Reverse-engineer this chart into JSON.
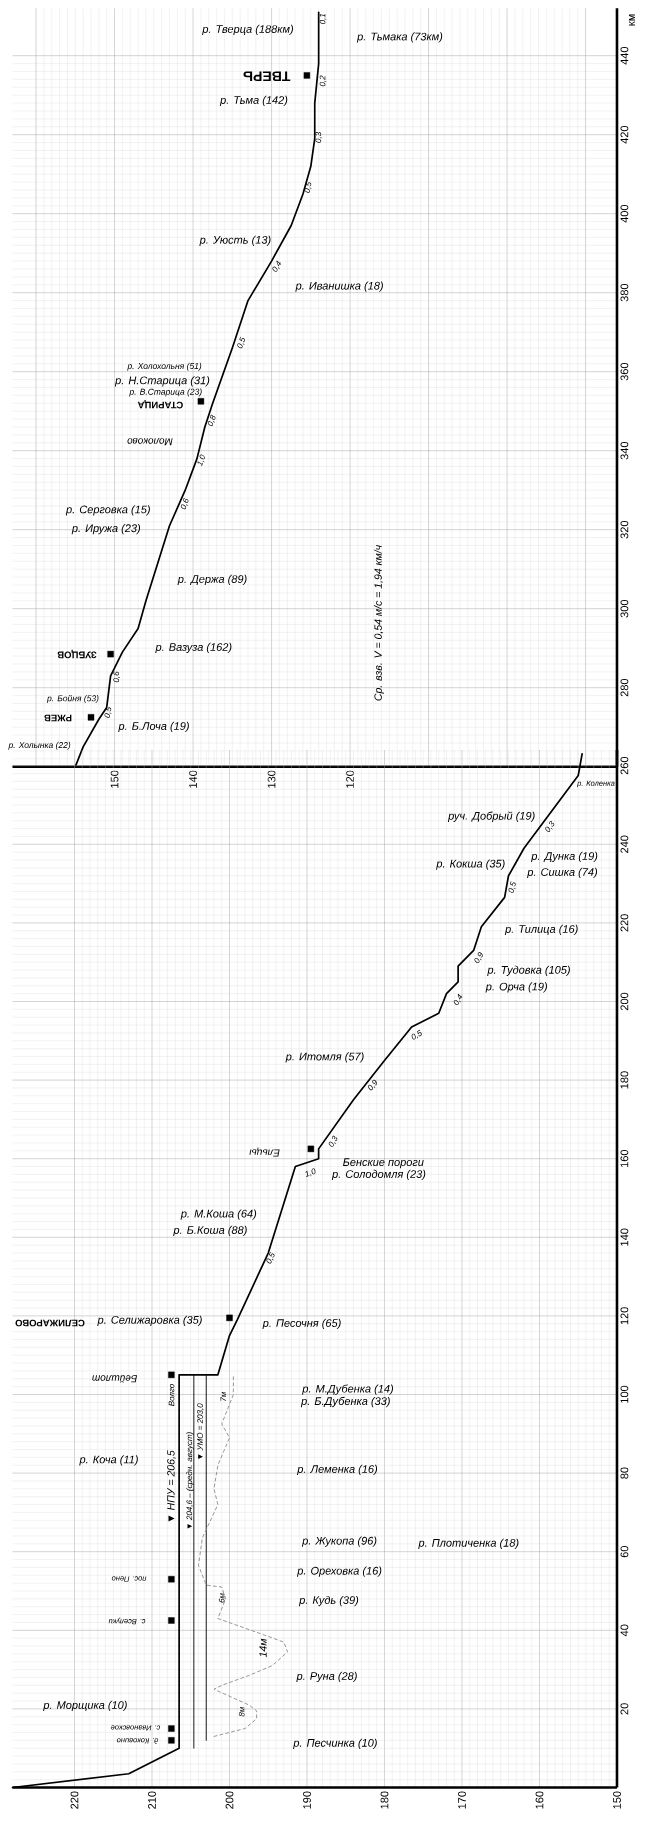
{
  "chart_data": [
    {
      "type": "line",
      "ylabel": "км",
      "xlim": [
        163,
        86
      ],
      "ylim": [
        260,
        452
      ],
      "xticks": [
        {
          "value": 160,
          "label": null
        },
        150,
        140,
        130,
        120,
        {
          "value": 110,
          "label": null
        },
        {
          "value": 100,
          "label": null
        },
        {
          "value": 90,
          "label": null
        }
      ],
      "yticks": [
        {
          "value": 260,
          "label": null
        },
        280,
        300,
        320,
        340,
        360,
        380,
        400,
        420,
        440
      ],
      "grid": true,
      "series": [
        {
          "color": "#000000",
          "line_style": "solid",
          "x": [
            155,
            154,
            152,
            151,
            150.5,
            149,
            147,
            146,
            143,
            141,
            139.5,
            138.5,
            137.5,
            135,
            133,
            130,
            127.5,
            126,
            125,
            124.5,
            124.5,
            124,
            124
          ],
          "values": [
            260,
            265,
            272,
            275,
            283,
            289,
            295,
            302,
            321,
            330,
            338,
            346,
            352,
            366,
            378,
            388,
            397,
            405,
            412,
            419,
            428,
            438,
            451
          ]
        },
        {
          "type": "scatter",
          "color": "#000000",
          "marker": "square",
          "x": [
            125.5,
            139,
            150.5,
            153
          ],
          "values": [
            435,
            352.5,
            288.5,
            272.5
          ]
        }
      ],
      "annotations": [
        "р. Тверца (188км)",
        "р. Тьмака (73км)",
        "ТВЕРЬ",
        "р. Тьма (142)",
        "р. Уюсть (13)",
        "р. Иванишка (18)",
        "0,1",
        "0,2",
        "0,3",
        "0,5",
        "0,4",
        "0,5",
        "р. Холохольня (51)",
        "р. Н.Старица (31)",
        "р. В.Старица (23)",
        "СТАРИЦА",
        "Молоково",
        "0,8",
        "1,0",
        "0,6",
        "р. Серговка (15)",
        "р. Иружа (23)",
        "р. Держа (89)",
        "р. Вазуза (162)",
        "ЗУБЦОВ",
        "0,6",
        "р. Бойня (53)",
        "РЖЕВ",
        "0,5",
        "р. Б.Лоча (19)",
        "р. Холынка (22)",
        "Ср. взв. V = 0,54 м/с = 1,94 км/ч"
      ]
    },
    {
      "type": "line",
      "xlim": [
        228,
        150
      ],
      "ylim": [
        0,
        264
      ],
      "xticks": [
        220,
        210,
        200,
        190,
        180,
        170,
        160,
        150
      ],
      "yticks": [
        {
          "value": 0,
          "label": null
        },
        20,
        40,
        60,
        80,
        100,
        120,
        140,
        160,
        180,
        200,
        220,
        240,
        260
      ],
      "grid": true,
      "series": [
        {
          "color": "#000000",
          "line_style": "solid",
          "x": [
            228,
            213,
            206.5,
            206.5,
            201.5,
            200,
            199,
            195,
            191.5,
            188.5,
            188.5,
            184,
            180,
            176.5,
            173,
            172,
            170.5,
            170.5,
            168.5,
            167.5,
            164.5,
            164,
            162,
            155,
            154.5
          ],
          "values": [
            0,
            3.5,
            10,
            105,
            105,
            115,
            119,
            136,
            158,
            160,
            162.5,
            175,
            185,
            193.5,
            197,
            202,
            205,
            209,
            213,
            219,
            226.5,
            232,
            239,
            257.5,
            263
          ]
        },
        {
          "color": "#000000",
          "line_style": "solid",
          "x": [
            204.6,
            204.6
          ],
          "values": [
            10,
            105
          ]
        },
        {
          "color": "#000000",
          "line_style": "solid",
          "x": [
            203,
            203
          ],
          "values": [
            12,
            105
          ]
        },
        {
          "color": "#8c8c8c",
          "line_style": "dashed",
          "x": [
            199.5,
            199.5,
            201,
            200,
            201.5,
            202,
            201.5,
            203.5,
            204,
            203,
            201,
            200.5,
            201.5,
            196.5,
            193,
            192.5,
            194.5,
            197.5,
            201,
            202,
            197.5,
            196.5,
            196.5,
            198,
            202
          ],
          "values": [
            104.5,
            100,
            92.5,
            89,
            82,
            76,
            72,
            63.5,
            56.5,
            51.5,
            51,
            48,
            43,
            39.5,
            37,
            34.5,
            31,
            28.5,
            26,
            25,
            21,
            19.5,
            17.5,
            15,
            13
          ]
        },
        {
          "type": "scatter",
          "color": "#000000",
          "marker": "square",
          "x": [
            189.5,
            200,
            207.5,
            207.5,
            207.5,
            207.5,
            207.5
          ],
          "values": [
            162.5,
            119.5,
            105,
            53,
            42.5,
            15,
            12
          ]
        }
      ],
      "annotations": [
        "р. Коленка",
        "руч. Добрый (19)",
        "0,3",
        "р. Кокша (35)",
        "р. Дунка (19)",
        "р. Сишка (74)",
        "0,5",
        "р. Тилица (16)",
        "0,9",
        "р. Тудовка (105)",
        "р. Орча (19)",
        "0,4",
        "0,5",
        "р. Итомля (57)",
        "0,9",
        "0,3",
        "Ельцы",
        "Бенские пороги",
        "р. Солодомля (23)",
        "1,0",
        "р. М.Коша (64)",
        "р. Б.Коша (88)",
        "0,5",
        "СЕЛИЖАРОВО",
        "р. Селижаровка (35)",
        "р. Песочня (65)",
        "Бейшлот",
        "р. М.Дубенка (14)",
        "р. Б.Дубенка (33)",
        "Волго",
        "р. Коча (11)",
        "р. Леменка (16)",
        "▼ НПУ = 206,5",
        "▼ 204,6 – (средн. август)",
        "▼ УМО = 203,0",
        "7м",
        "р. Жукопа (96)",
        "р. Плотиченка (18)",
        "р. Ореховка (16)",
        "р. Кудь (39)",
        "пос. Пено",
        "с. Вселуки",
        "6м",
        "14м",
        "р. Руна (28)",
        "р. Морщика (10)",
        "8м",
        "с. Ивановское",
        "д. Коковино",
        "р. Песчинка (10)"
      ]
    }
  ]
}
